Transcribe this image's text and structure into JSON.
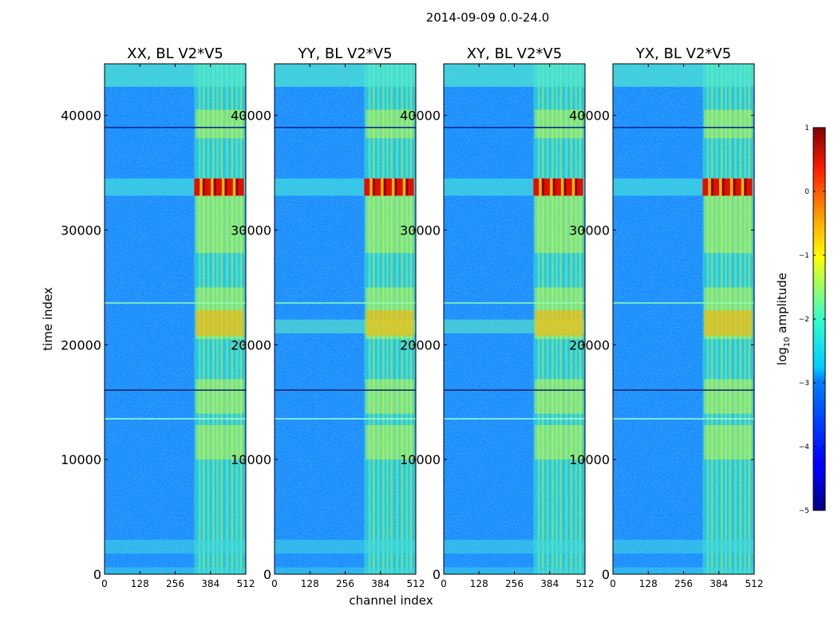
{
  "figure": {
    "suptitle": "2014-09-09 0.0-24.0",
    "xlabel": "channel index",
    "ylabel": "time index"
  },
  "chart_data": [
    {
      "type": "heatmap",
      "title": "XX, BL V2*V5",
      "x_ticks": [
        "0",
        "128",
        "256",
        "384",
        "512"
      ],
      "y_ticks": [
        "0",
        "10000",
        "20000",
        "30000",
        "40000"
      ],
      "xlim": [
        0,
        512
      ],
      "ylim": [
        0,
        44500
      ]
    },
    {
      "type": "heatmap",
      "title": "YY, BL V2*V5",
      "x_ticks": [
        "0",
        "128",
        "256",
        "384",
        "512"
      ],
      "y_ticks": [
        "0",
        "10000",
        "20000",
        "30000",
        "40000"
      ],
      "xlim": [
        0,
        512
      ],
      "ylim": [
        0,
        44500
      ]
    },
    {
      "type": "heatmap",
      "title": "XY, BL V2*V5",
      "x_ticks": [
        "0",
        "128",
        "256",
        "384",
        "512"
      ],
      "y_ticks": [
        "0",
        "10000",
        "20000",
        "30000",
        "40000"
      ],
      "xlim": [
        0,
        512
      ],
      "ylim": [
        0,
        44500
      ]
    },
    {
      "type": "heatmap",
      "title": "YX, BL V2*V5",
      "x_ticks": [
        "0",
        "128",
        "256",
        "384",
        "512"
      ],
      "y_ticks": [
        "0",
        "10000",
        "20000",
        "30000",
        "40000"
      ],
      "xlim": [
        0,
        512
      ],
      "ylim": [
        0,
        44500
      ]
    }
  ],
  "colorbar": {
    "label": "log",
    "label_sub": "10",
    "label_rest": " amplitude",
    "ticks": [
      1,
      0,
      -1,
      -2,
      -3,
      -4,
      -5
    ],
    "tick_labels": [
      "1",
      "0",
      "−1",
      "−2",
      "−3",
      "−4",
      "−5"
    ],
    "vmin": -5,
    "vmax": 1,
    "colormap": "jet"
  }
}
